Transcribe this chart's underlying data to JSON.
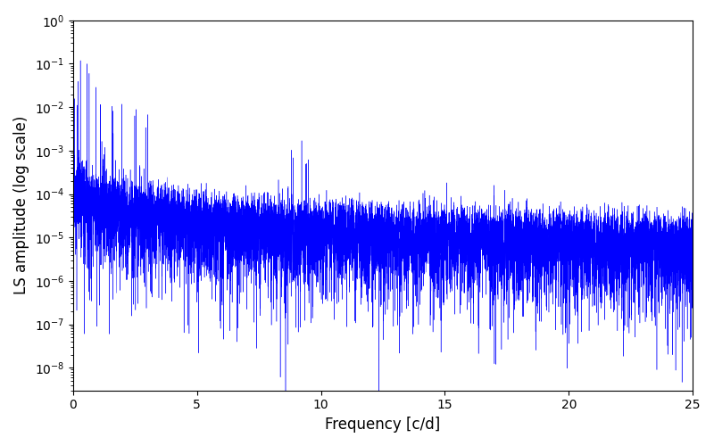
{
  "xlabel": "Frequency [c/d]",
  "ylabel": "LS amplitude (log scale)",
  "line_color": "#0000ff",
  "xlim": [
    0,
    25
  ],
  "ylim_low": 3e-09,
  "ylim_high": 1.0,
  "freq_max": 25.0,
  "n_points": 10000,
  "seed": 12345,
  "background_color": "#ffffff",
  "figsize": [
    8.0,
    5.0
  ],
  "dpi": 100
}
